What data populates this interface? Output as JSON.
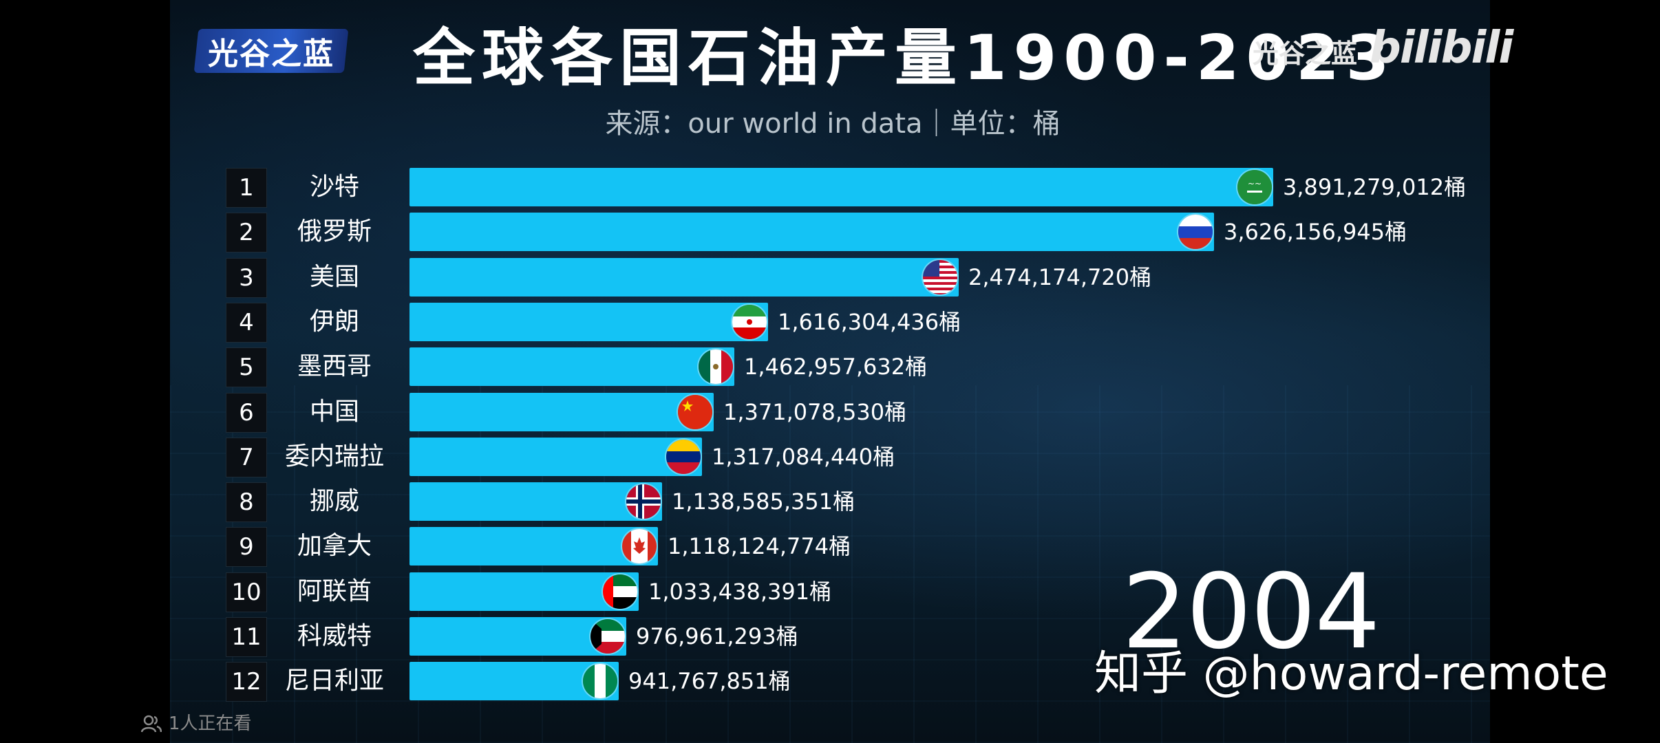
{
  "header": {
    "logo_text": "光谷之蓝",
    "title": "全球各国石油产量1900-2023",
    "subtitle": "来源：our world in data｜单位：桶",
    "brand_text": "光谷之蓝",
    "platform_text": "bilibili"
  },
  "overlay": {
    "year": "2004",
    "watermark": "知乎 @howard-remote",
    "viewers": "1人正在看"
  },
  "colors": {
    "bar": "#14c3f5",
    "text": "#ffffff"
  },
  "chart_data": {
    "type": "bar",
    "orientation": "horizontal",
    "title": "全球各国石油产量1900-2023",
    "subtitle": "来源：our world in data｜单位：桶",
    "unit": "桶",
    "year": "2004",
    "xlim": [
      0,
      3891279012
    ],
    "legend": "none",
    "grid": false,
    "ranks": [
      "1",
      "2",
      "3",
      "4",
      "5",
      "6",
      "7",
      "8",
      "9",
      "10",
      "11",
      "12"
    ],
    "categories": [
      "沙特",
      "俄罗斯",
      "美国",
      "伊朗",
      "墨西哥",
      "中国",
      "委内瑞拉",
      "挪威",
      "加拿大",
      "阿联酋",
      "科威特",
      "尼日利亚"
    ],
    "values": [
      3891279012,
      3626156945,
      2474174720,
      1616304436,
      1462957632,
      1371078530,
      1317084440,
      1138585351,
      1118124774,
      1033438391,
      976961293,
      941767851
    ],
    "value_labels": [
      "3,891,279,012桶",
      "3,626,156,945桶",
      "2,474,174,720桶",
      "1,616,304,436桶",
      "1,462,957,632桶",
      "1,371,078,530桶",
      "1,317,084,440桶",
      "1,138,585,351桶",
      "1,118,124,774桶",
      "1,033,438,391桶",
      "976,961,293桶",
      "941,767,851桶"
    ],
    "flags": [
      "saudi-arabia-flag-icon",
      "russia-flag-icon",
      "usa-flag-icon",
      "iran-flag-icon",
      "mexico-flag-icon",
      "china-flag-icon",
      "venezuela-flag-icon",
      "norway-flag-icon",
      "canada-flag-icon",
      "uae-flag-icon",
      "kuwait-flag-icon",
      "nigeria-flag-icon"
    ]
  }
}
